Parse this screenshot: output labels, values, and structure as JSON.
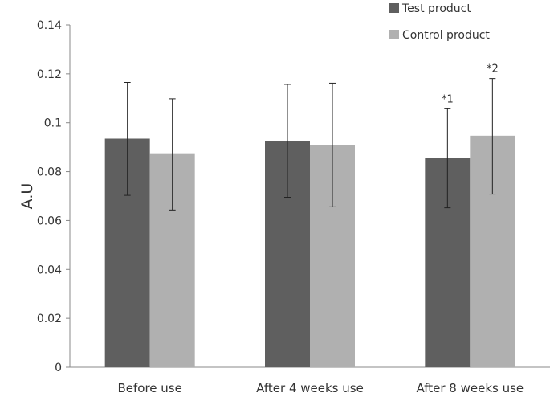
{
  "chart_data": {
    "type": "bar",
    "title": "",
    "xlabel": "",
    "ylabel": "A.U",
    "ylim": [
      0,
      0.14
    ],
    "yticks": [
      "0",
      "0.02",
      "0.04",
      "0.06",
      "0.08",
      "0.1",
      "0.12",
      "0.14"
    ],
    "grid": false,
    "legend_placement": "top-right",
    "categories": [
      "Before use",
      "After 4 weeks use",
      "After 8 weeks use"
    ],
    "series": [
      {
        "name": "Test product",
        "color": "#5f5f5f",
        "values": [
          0.0935,
          0.0925,
          0.0856
        ],
        "err_upper": [
          0.1165,
          0.1157,
          0.1057
        ],
        "err_lower": [
          0.0703,
          0.0695,
          0.0652
        ],
        "annotations": [
          "",
          "",
          "*1"
        ]
      },
      {
        "name": "Control product",
        "color": "#b0b0b0",
        "values": [
          0.0872,
          0.091,
          0.0947
        ],
        "err_upper": [
          0.1098,
          0.1162,
          0.1181
        ],
        "err_lower": [
          0.0643,
          0.0656,
          0.0708
        ],
        "annotations": [
          "",
          "",
          "*2"
        ]
      }
    ]
  }
}
